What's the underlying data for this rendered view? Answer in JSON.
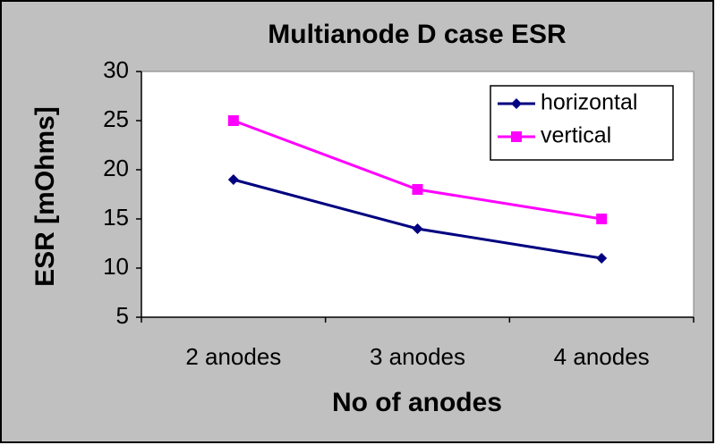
{
  "chart_data": {
    "type": "line",
    "title": "Multianode D case ESR",
    "x_label": "No of anodes",
    "y_label": "ESR [mOhms]",
    "categories": [
      "2 anodes",
      "3 anodes",
      "4 anodes"
    ],
    "series": [
      {
        "name": "horizontal",
        "color": "#000080",
        "marker": "diamond",
        "values": [
          19,
          14,
          11
        ]
      },
      {
        "name": "vertical",
        "color": "#ff00ff",
        "marker": "square",
        "values": [
          25,
          18,
          15
        ]
      }
    ],
    "ylim": [
      5,
      30
    ],
    "yticks": [
      5,
      10,
      15,
      20,
      25,
      30
    ],
    "grid": false,
    "legend": "top-right"
  }
}
